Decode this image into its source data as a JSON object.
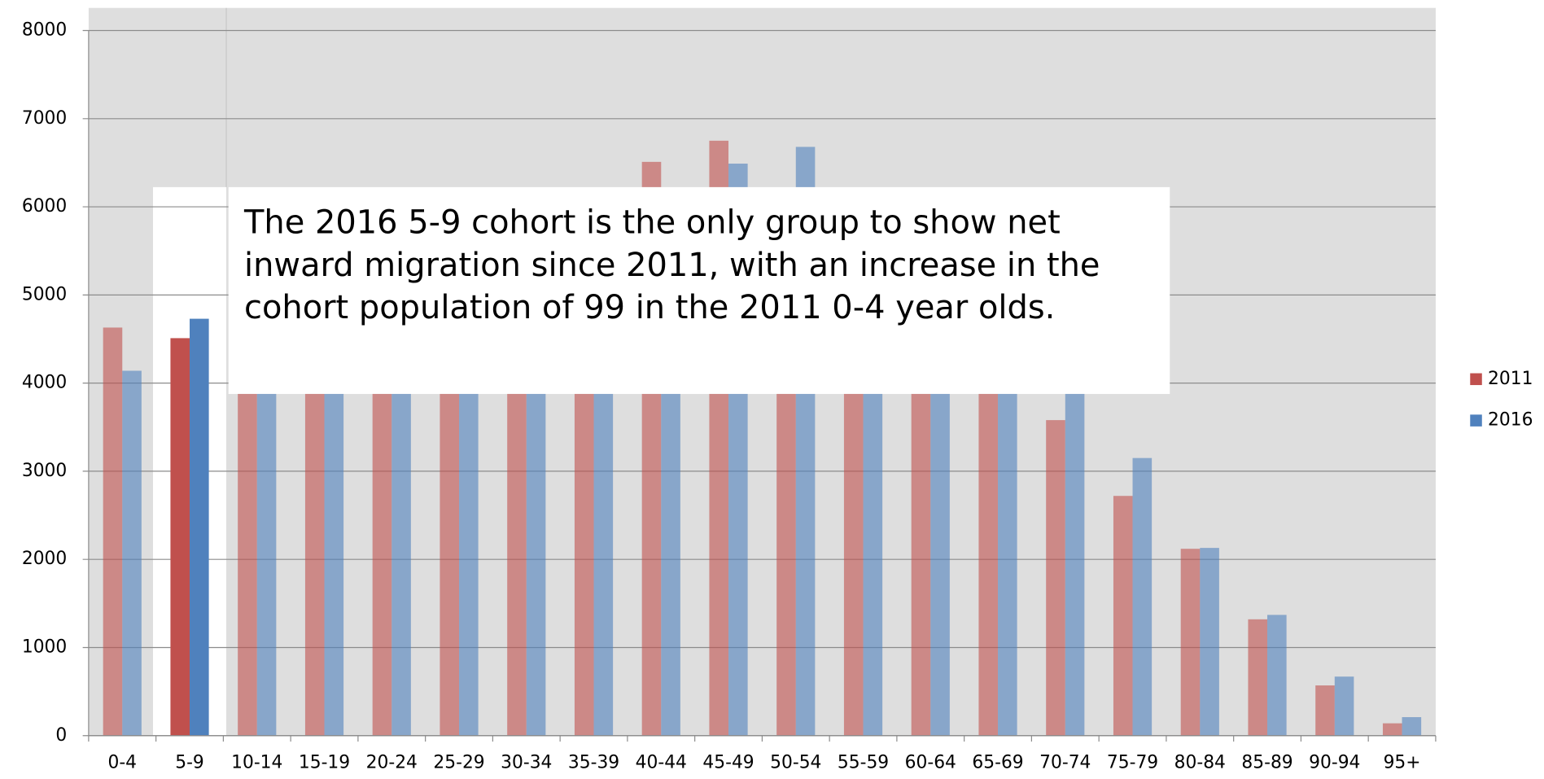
{
  "chart_data": {
    "type": "bar",
    "annotation": "The 2016 5-9 cohort is the only group to show net inward migration since 2011, with an increase in the cohort population of 99 in the 2011 0-4 year olds.",
    "categories": [
      "0-4",
      "5-9",
      "10-14",
      "15-19",
      "20-24",
      "25-29",
      "30-34",
      "35-39",
      "40-44",
      "45-49",
      "50-54",
      "55-59",
      "60-64",
      "65-69",
      "70-74",
      "75-79",
      "80-84",
      "85-89",
      "90-94",
      "95+"
    ],
    "series": [
      {
        "name": "2011",
        "color": "#c0504d",
        "values": [
          4630,
          4510,
          4800,
          4500,
          4300,
          4500,
          5000,
          5700,
          6510,
          6750,
          6100,
          5300,
          4700,
          4400,
          3580,
          2720,
          2120,
          1320,
          570,
          140
        ]
      },
      {
        "name": "2016",
        "color": "#4f81bd",
        "values": [
          4140,
          4730,
          4600,
          4400,
          4200,
          4300,
          4700,
          5300,
          5900,
          6490,
          6680,
          5800,
          5200,
          4600,
          4300,
          3150,
          2130,
          1370,
          670,
          210
        ]
      }
    ],
    "ylim": [
      0,
      8000
    ],
    "yticks": [
      0,
      1000,
      2000,
      3000,
      4000,
      5000,
      6000,
      7000,
      8000
    ],
    "grid": true,
    "legend": "right"
  }
}
